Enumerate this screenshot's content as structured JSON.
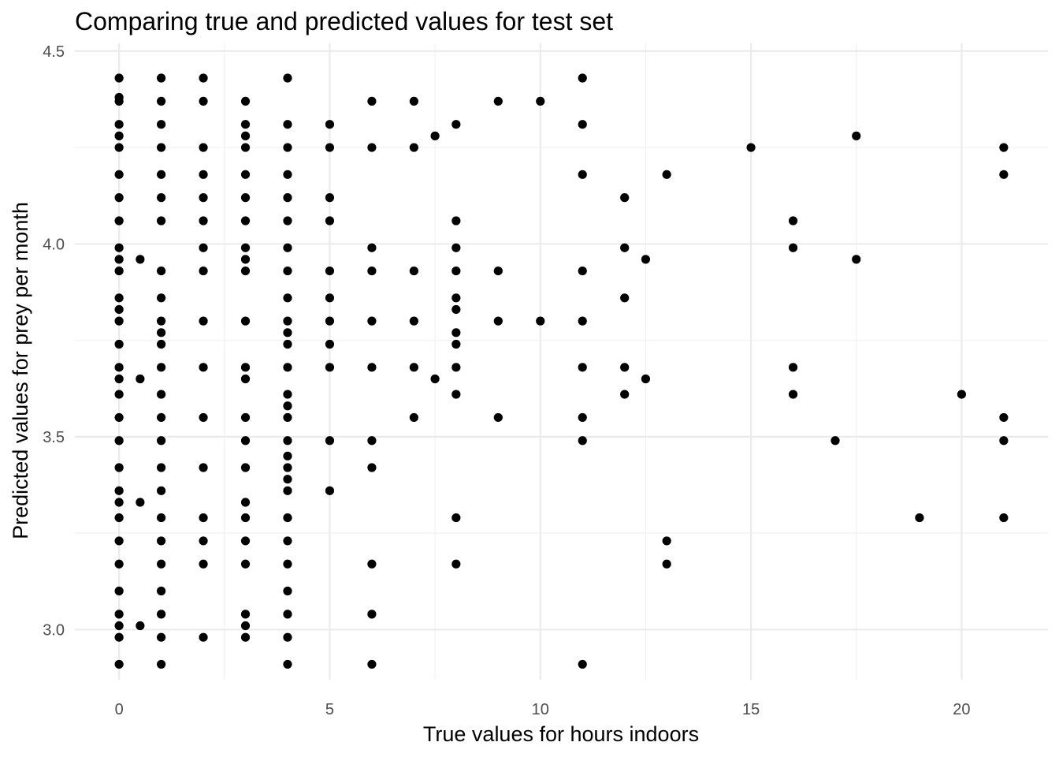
{
  "chart_data": {
    "type": "scatter",
    "title": "Comparing true and predicted values for test set",
    "xlabel": "True values for hours indoors",
    "ylabel": "Predicted values for prey per month",
    "xlim": [
      -1.05,
      22.05
    ],
    "ylim": [
      2.87,
      4.52
    ],
    "x_ticks": [
      0,
      5,
      10,
      15,
      20
    ],
    "x_tick_labels": [
      "0",
      "5",
      "10",
      "15",
      "20"
    ],
    "y_ticks": [
      3.0,
      3.5,
      4.0,
      4.5
    ],
    "y_tick_labels": [
      "3.0",
      "3.5",
      "4.0",
      "4.5"
    ],
    "grid": true,
    "legend": "none",
    "point_color": "#000000",
    "points": [
      [
        0,
        4.43
      ],
      [
        0,
        4.38
      ],
      [
        0,
        4.37
      ],
      [
        0,
        4.31
      ],
      [
        0,
        4.28
      ],
      [
        0,
        4.25
      ],
      [
        0,
        4.18
      ],
      [
        0,
        4.12
      ],
      [
        0,
        4.06
      ],
      [
        0,
        3.99
      ],
      [
        0,
        3.96
      ],
      [
        0,
        3.93
      ],
      [
        0,
        3.86
      ],
      [
        0,
        3.83
      ],
      [
        0,
        3.8
      ],
      [
        0,
        3.74
      ],
      [
        0,
        3.68
      ],
      [
        0,
        3.65
      ],
      [
        0,
        3.61
      ],
      [
        0,
        3.55
      ],
      [
        0,
        3.49
      ],
      [
        0,
        3.42
      ],
      [
        0,
        3.36
      ],
      [
        0,
        3.33
      ],
      [
        0,
        3.29
      ],
      [
        0,
        3.23
      ],
      [
        0,
        3.17
      ],
      [
        0,
        3.1
      ],
      [
        0,
        3.04
      ],
      [
        0,
        3.01
      ],
      [
        0,
        2.98
      ],
      [
        0,
        2.91
      ],
      [
        0.5,
        3.96
      ],
      [
        0.5,
        3.65
      ],
      [
        0.5,
        3.33
      ],
      [
        0.5,
        3.01
      ],
      [
        1,
        4.43
      ],
      [
        1,
        4.37
      ],
      [
        1,
        4.31
      ],
      [
        1,
        4.25
      ],
      [
        1,
        4.18
      ],
      [
        1,
        4.12
      ],
      [
        1,
        4.06
      ],
      [
        1,
        3.93
      ],
      [
        1,
        3.86
      ],
      [
        1,
        3.8
      ],
      [
        1,
        3.77
      ],
      [
        1,
        3.74
      ],
      [
        1,
        3.68
      ],
      [
        1,
        3.61
      ],
      [
        1,
        3.55
      ],
      [
        1,
        3.49
      ],
      [
        1,
        3.42
      ],
      [
        1,
        3.36
      ],
      [
        1,
        3.29
      ],
      [
        1,
        3.23
      ],
      [
        1,
        3.17
      ],
      [
        1,
        3.1
      ],
      [
        1,
        3.04
      ],
      [
        1,
        2.98
      ],
      [
        1,
        2.91
      ],
      [
        2,
        4.43
      ],
      [
        2,
        4.37
      ],
      [
        2,
        4.25
      ],
      [
        2,
        4.18
      ],
      [
        2,
        4.12
      ],
      [
        2,
        4.06
      ],
      [
        2,
        3.99
      ],
      [
        2,
        3.93
      ],
      [
        2,
        3.8
      ],
      [
        2,
        3.68
      ],
      [
        2,
        3.55
      ],
      [
        2,
        3.42
      ],
      [
        2,
        3.29
      ],
      [
        2,
        3.23
      ],
      [
        2,
        3.17
      ],
      [
        2,
        2.98
      ],
      [
        3,
        4.37
      ],
      [
        3,
        4.31
      ],
      [
        3,
        4.28
      ],
      [
        3,
        4.25
      ],
      [
        3,
        4.18
      ],
      [
        3,
        4.12
      ],
      [
        3,
        4.06
      ],
      [
        3,
        3.99
      ],
      [
        3,
        3.96
      ],
      [
        3,
        3.93
      ],
      [
        3,
        3.8
      ],
      [
        3,
        3.68
      ],
      [
        3,
        3.65
      ],
      [
        3,
        3.55
      ],
      [
        3,
        3.49
      ],
      [
        3,
        3.42
      ],
      [
        3,
        3.33
      ],
      [
        3,
        3.29
      ],
      [
        3,
        3.23
      ],
      [
        3,
        3.17
      ],
      [
        3,
        3.04
      ],
      [
        3,
        3.01
      ],
      [
        3,
        2.98
      ],
      [
        4,
        4.43
      ],
      [
        4,
        4.31
      ],
      [
        4,
        4.25
      ],
      [
        4,
        4.18
      ],
      [
        4,
        4.12
      ],
      [
        4,
        4.06
      ],
      [
        4,
        3.99
      ],
      [
        4,
        3.93
      ],
      [
        4,
        3.86
      ],
      [
        4,
        3.8
      ],
      [
        4,
        3.77
      ],
      [
        4,
        3.74
      ],
      [
        4,
        3.68
      ],
      [
        4,
        3.61
      ],
      [
        4,
        3.58
      ],
      [
        4,
        3.55
      ],
      [
        4,
        3.49
      ],
      [
        4,
        3.45
      ],
      [
        4,
        3.42
      ],
      [
        4,
        3.39
      ],
      [
        4,
        3.36
      ],
      [
        4,
        3.29
      ],
      [
        4,
        3.23
      ],
      [
        4,
        3.17
      ],
      [
        4,
        3.1
      ],
      [
        4,
        3.04
      ],
      [
        4,
        2.98
      ],
      [
        4,
        2.91
      ],
      [
        5,
        4.31
      ],
      [
        5,
        4.25
      ],
      [
        5,
        4.12
      ],
      [
        5,
        4.06
      ],
      [
        5,
        3.93
      ],
      [
        5,
        3.86
      ],
      [
        5,
        3.8
      ],
      [
        5,
        3.74
      ],
      [
        5,
        3.68
      ],
      [
        5,
        3.49
      ],
      [
        5,
        3.36
      ],
      [
        6,
        4.37
      ],
      [
        6,
        4.25
      ],
      [
        6,
        3.99
      ],
      [
        6,
        3.93
      ],
      [
        6,
        3.8
      ],
      [
        6,
        3.68
      ],
      [
        6,
        3.49
      ],
      [
        6,
        3.42
      ],
      [
        6,
        3.17
      ],
      [
        6,
        3.04
      ],
      [
        6,
        2.91
      ],
      [
        7,
        4.37
      ],
      [
        7,
        4.25
      ],
      [
        7,
        3.93
      ],
      [
        7,
        3.8
      ],
      [
        7,
        3.68
      ],
      [
        7,
        3.55
      ],
      [
        7.5,
        4.28
      ],
      [
        7.5,
        3.65
      ],
      [
        8,
        4.31
      ],
      [
        8,
        4.06
      ],
      [
        8,
        3.99
      ],
      [
        8,
        3.93
      ],
      [
        8,
        3.86
      ],
      [
        8,
        3.83
      ],
      [
        8,
        3.77
      ],
      [
        8,
        3.74
      ],
      [
        8,
        3.68
      ],
      [
        8,
        3.61
      ],
      [
        8,
        3.29
      ],
      [
        8,
        3.17
      ],
      [
        9,
        4.37
      ],
      [
        9,
        3.93
      ],
      [
        9,
        3.8
      ],
      [
        9,
        3.55
      ],
      [
        10,
        4.37
      ],
      [
        10,
        3.8
      ],
      [
        11,
        4.43
      ],
      [
        11,
        4.31
      ],
      [
        11,
        4.18
      ],
      [
        11,
        3.93
      ],
      [
        11,
        3.8
      ],
      [
        11,
        3.68
      ],
      [
        11,
        3.55
      ],
      [
        11,
        3.49
      ],
      [
        11,
        2.91
      ],
      [
        12,
        4.12
      ],
      [
        12,
        3.99
      ],
      [
        12,
        3.86
      ],
      [
        12,
        3.68
      ],
      [
        12,
        3.61
      ],
      [
        12.5,
        3.96
      ],
      [
        12.5,
        3.65
      ],
      [
        13,
        4.18
      ],
      [
        13,
        3.23
      ],
      [
        13,
        3.17
      ],
      [
        15,
        4.25
      ],
      [
        16,
        4.06
      ],
      [
        16,
        3.99
      ],
      [
        16,
        3.68
      ],
      [
        16,
        3.61
      ],
      [
        17,
        3.49
      ],
      [
        17.5,
        4.28
      ],
      [
        17.5,
        3.96
      ],
      [
        19,
        3.29
      ],
      [
        20,
        3.61
      ],
      [
        21,
        4.25
      ],
      [
        21,
        4.18
      ],
      [
        21,
        3.55
      ],
      [
        21,
        3.49
      ],
      [
        21,
        3.29
      ]
    ]
  }
}
